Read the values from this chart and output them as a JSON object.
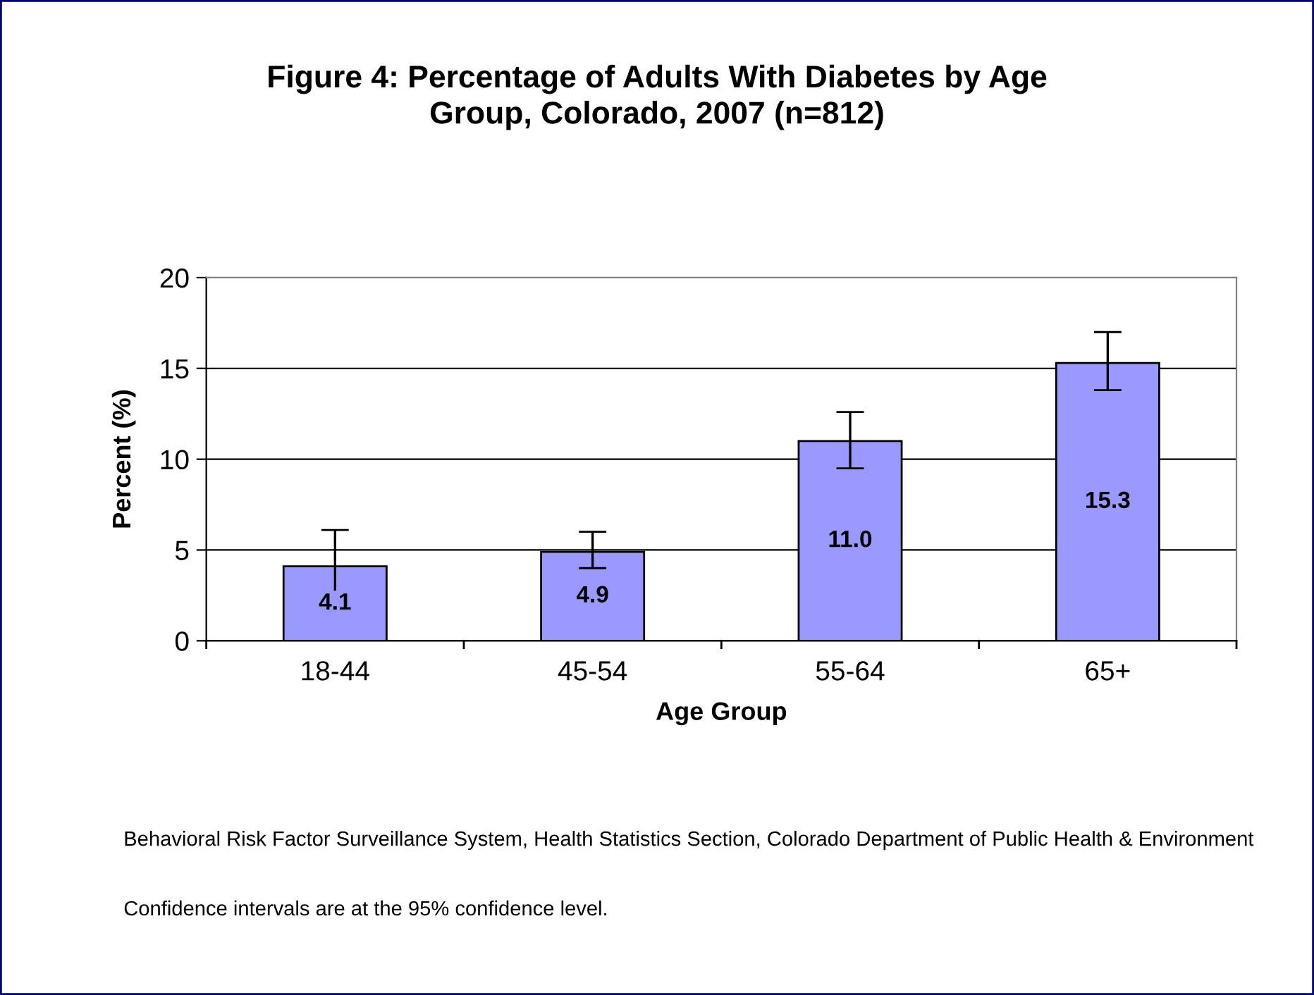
{
  "chart_data": {
    "type": "bar",
    "title": "Figure 4: Percentage of Adults With Diabetes by Age\nGroup, Colorado, 2007 (n=812)",
    "xlabel": "Age Group",
    "ylabel": "Percent (%)",
    "categories": [
      "18-44",
      "45-54",
      "55-64",
      "65+"
    ],
    "values": [
      4.1,
      4.9,
      11.0,
      15.3
    ],
    "errors": [
      [
        2.2,
        6.1
      ],
      [
        4.0,
        6.0
      ],
      [
        9.5,
        12.6
      ],
      [
        13.8,
        17.0
      ]
    ],
    "color": "#9999ff",
    "ylim": [
      0,
      20
    ],
    "yticks": [
      0,
      5,
      10,
      15,
      20
    ],
    "grid": "y",
    "value_labels": [
      "4.1",
      "4.9",
      "11.0",
      "15.3"
    ],
    "annotations": [
      "Behavioral Risk Factor Surveillance System, Health Statistics Section, Colorado Department of Public Health & Environment",
      "Confidence intervals are at the 95% confidence level."
    ]
  }
}
